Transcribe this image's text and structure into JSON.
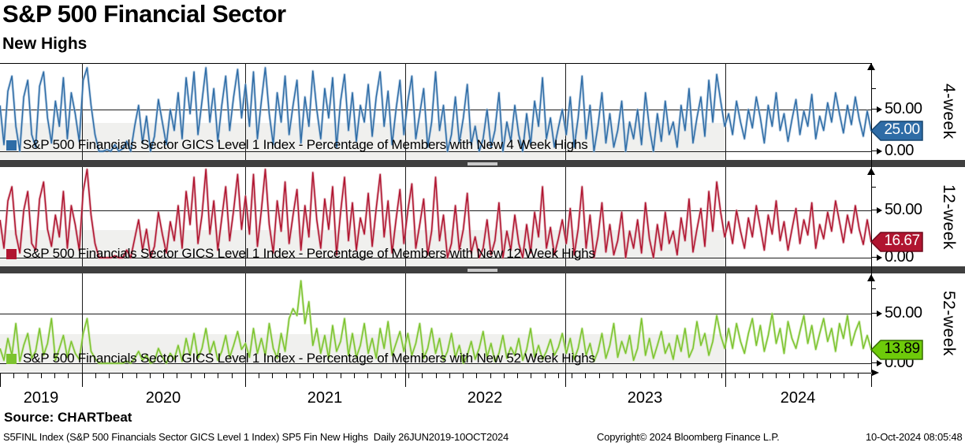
{
  "header": {
    "title": "S&P 500 Financial Sector",
    "subtitle": "New Highs"
  },
  "source_line": "Source: CHARTbeat",
  "footer": {
    "left": "S5FINL Index (S&P 500 Financials Sector GICS Level 1 Index) SP5 Fin New Highs  Daily 26JUN2019-10OCT2024",
    "copyright": "Copyright© 2024 Bloomberg Finance L.P.",
    "timestamp": "10-Oct-2024 08:05:48"
  },
  "x_axis": {
    "year_labels": [
      "2019",
      "2020",
      "2021",
      "2022",
      "2023",
      "2024"
    ],
    "range": "26JUN2019-10OCT2024",
    "frequency": "Daily"
  },
  "chart_data": [
    {
      "type": "line",
      "panel_label": "4-week",
      "legend": "S&P 500 Financials Sector GICS Level 1 Index - Percentage of Members with New 4 Week Highs",
      "color": "#2e6ca6",
      "echo_color": "#9fbcd8",
      "tag_fill": "#2e6ca6",
      "tag_border": "#16456e",
      "tag_text_color": "#ffffff",
      "last_value": "25.00",
      "ytick_labels": [
        "50.00",
        "0.00"
      ],
      "yticks": [
        0,
        25,
        50,
        75
      ],
      "ylim": [
        0,
        105
      ],
      "values": [
        55,
        8,
        72,
        90,
        30,
        0,
        65,
        85,
        20,
        5,
        78,
        95,
        40,
        10,
        60,
        30,
        88,
        15,
        70,
        45,
        12,
        85,
        100,
        55,
        20,
        0,
        0,
        2,
        0,
        8,
        0,
        3,
        12,
        0,
        30,
        55,
        10,
        42,
        0,
        18,
        62,
        35,
        8,
        50,
        25,
        70,
        15,
        88,
        45,
        95,
        20,
        60,
        100,
        35,
        75,
        12,
        55,
        90,
        25,
        65,
        98,
        40,
        80,
        30,
        95,
        15,
        60,
        100,
        45,
        8,
        70,
        35,
        90,
        20,
        55,
        85,
        10,
        65,
        30,
        96,
        50,
        15,
        75,
        40,
        88,
        5,
        60,
        92,
        25,
        70,
        12,
        55,
        35,
        80,
        18,
        65,
        95,
        30,
        72,
        8,
        50,
        85,
        20,
        60,
        90,
        15,
        45,
        75,
        5,
        35,
        95,
        25,
        55,
        0,
        20,
        65,
        10,
        40,
        80,
        8,
        30,
        0,
        15,
        50,
        5,
        25,
        70,
        0,
        35,
        12,
        55,
        20,
        0,
        45,
        8,
        60,
        30,
        88,
        15,
        40,
        5,
        28,
        50,
        20,
        65,
        5,
        40,
        90,
        15,
        55,
        0,
        30,
        70,
        10,
        45,
        5,
        25,
        60,
        0,
        35,
        15,
        50,
        8,
        70,
        28,
        0,
        45,
        12,
        60,
        20,
        35,
        5,
        55,
        25,
        75,
        10,
        40,
        65,
        18,
        85,
        35,
        92,
        60,
        30,
        45,
        20,
        60,
        35,
        15,
        50,
        28,
        65,
        40,
        10,
        55,
        30,
        70,
        25,
        45,
        12,
        38,
        62,
        20,
        48,
        30,
        68,
        15,
        42,
        25,
        58,
        35,
        70,
        45,
        22,
        55,
        32,
        65,
        38,
        18,
        48,
        25
      ]
    },
    {
      "type": "line",
      "panel_label": "12-week",
      "legend": "S&P 500 Financials Sector GICS Level 1 Index - Percentage of Members with New 12 Week Highs",
      "color": "#b01530",
      "echo_color": "#d795a0",
      "tag_fill": "#b01530",
      "tag_border": "#6e0a1c",
      "tag_text_color": "#ffffff",
      "last_value": "16.67",
      "ytick_labels": [
        "50.00",
        "0.00"
      ],
      "yticks": [
        0,
        25,
        50,
        75
      ],
      "ylim": [
        0,
        96
      ],
      "values": [
        40,
        10,
        60,
        75,
        25,
        5,
        50,
        70,
        15,
        8,
        62,
        80,
        30,
        12,
        45,
        22,
        70,
        10,
        55,
        35,
        8,
        70,
        95,
        45,
        15,
        0,
        0,
        0,
        0,
        2,
        0,
        0,
        8,
        0,
        20,
        40,
        8,
        30,
        0,
        12,
        48,
        25,
        5,
        38,
        18,
        55,
        10,
        70,
        35,
        85,
        15,
        45,
        95,
        25,
        60,
        8,
        42,
        75,
        18,
        50,
        88,
        30,
        65,
        25,
        88,
        12,
        50,
        97,
        35,
        5,
        60,
        28,
        80,
        15,
        45,
        72,
        8,
        55,
        22,
        90,
        40,
        10,
        62,
        30,
        75,
        3,
        48,
        85,
        18,
        58,
        8,
        42,
        25,
        68,
        12,
        52,
        88,
        22,
        60,
        5,
        40,
        72,
        15,
        50,
        78,
        10,
        35,
        62,
        3,
        28,
        85,
        18,
        45,
        0,
        15,
        55,
        8,
        30,
        68,
        5,
        22,
        0,
        10,
        40,
        3,
        18,
        58,
        0,
        28,
        8,
        45,
        15,
        0,
        35,
        5,
        48,
        22,
        75,
        10,
        32,
        3,
        20,
        40,
        15,
        52,
        3,
        30,
        75,
        10,
        45,
        0,
        22,
        58,
        6,
        35,
        3,
        18,
        48,
        0,
        28,
        10,
        40,
        5,
        58,
        20,
        0,
        35,
        8,
        48,
        15,
        28,
        3,
        42,
        18,
        62,
        6,
        30,
        52,
        12,
        70,
        28,
        80,
        48,
        22,
        38,
        15,
        50,
        28,
        10,
        42,
        22,
        55,
        32,
        8,
        45,
        25,
        60,
        18,
        38,
        8,
        30,
        52,
        15,
        40,
        24,
        58,
        10,
        35,
        20,
        48,
        28,
        60,
        38,
        16,
        45,
        26,
        55,
        30,
        14,
        40,
        16.67
      ]
    },
    {
      "type": "line",
      "panel_label": "52-week",
      "legend": "S&P 500 Financials Sector GICS Level 1 Index - Percentage of Members with New 52 Week Highs",
      "color": "#7cc32e",
      "echo_color": "#c0e29a",
      "tag_fill": "#6ecb0a",
      "tag_border": "#356b00",
      "tag_text_color": "#000000",
      "last_value": "13.89",
      "ytick_labels": [
        "50.00",
        "0.00"
      ],
      "yticks": [
        0,
        25,
        50,
        75
      ],
      "ylim": [
        0,
        90
      ],
      "values": [
        15,
        3,
        25,
        8,
        40,
        2,
        18,
        30,
        5,
        12,
        35,
        8,
        20,
        45,
        3,
        15,
        28,
        6,
        22,
        10,
        4,
        30,
        45,
        12,
        5,
        0,
        0,
        0,
        0,
        0,
        0,
        0,
        2,
        0,
        5,
        12,
        3,
        8,
        0,
        2,
        15,
        6,
        0,
        10,
        4,
        18,
        2,
        25,
        8,
        30,
        5,
        15,
        35,
        10,
        22,
        3,
        12,
        28,
        6,
        18,
        32,
        14,
        20,
        6,
        35,
        10,
        25,
        8,
        40,
        15,
        5,
        30,
        12,
        45,
        55,
        48,
        83,
        40,
        62,
        18,
        35,
        10,
        28,
        5,
        38,
        12,
        22,
        45,
        8,
        30,
        6,
        18,
        40,
        10,
        25,
        5,
        35,
        15,
        42,
        8,
        20,
        32,
        12,
        30,
        8,
        20,
        40,
        5,
        15,
        35,
        10,
        25,
        3,
        12,
        30,
        6,
        18,
        0,
        8,
        22,
        4,
        15,
        32,
        6,
        20,
        2,
        10,
        28,
        5,
        16,
        8,
        25,
        3,
        14,
        35,
        6,
        18,
        4,
        12,
        24,
        8,
        16,
        30,
        10,
        25,
        4,
        15,
        35,
        8,
        20,
        2,
        12,
        30,
        5,
        18,
        40,
        6,
        22,
        10,
        28,
        3,
        15,
        45,
        8,
        25,
        5,
        18,
        32,
        10,
        20,
        4,
        28,
        12,
        35,
        6,
        15,
        42,
        18,
        30,
        8,
        22,
        48,
        28,
        15,
        35,
        15,
        40,
        22,
        10,
        30,
        45,
        18,
        38,
        12,
        28,
        50,
        20,
        35,
        10,
        42,
        25,
        15,
        32,
        48,
        20,
        38,
        14,
        30,
        45,
        22,
        35,
        12,
        40,
        25,
        48,
        18,
        32,
        42,
        15,
        28,
        13.89
      ]
    }
  ]
}
